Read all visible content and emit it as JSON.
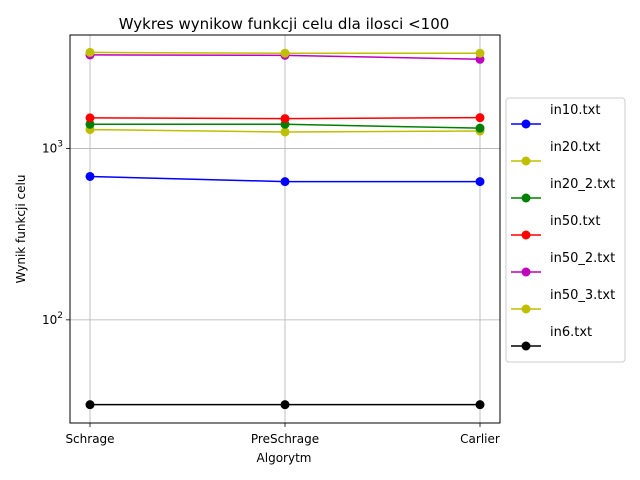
{
  "chart_data": {
    "type": "line",
    "title": "Wykres wynikow funkcji celu dla ilosci <100",
    "xlabel": "Algorytm",
    "ylabel": "Wynik funkcji celu",
    "yscale": "log",
    "ylim": [
      25,
      4600
    ],
    "y_ticks": [
      {
        "value": 100,
        "base": "10",
        "exp": "2"
      },
      {
        "value": 1000,
        "base": "10",
        "exp": "3"
      }
    ],
    "grid": true,
    "legend_position": "outside-right",
    "categories": [
      "Schrage",
      "PreSchrage",
      "Carlier"
    ],
    "series": [
      {
        "name": "in10.txt",
        "color": "#0000ff",
        "values": [
          687,
          641,
          641
        ]
      },
      {
        "name": "in20.txt",
        "color": "#bfbf00",
        "values": [
          1290,
          1250,
          1265
        ]
      },
      {
        "name": "in20_2.txt",
        "color": "#008000",
        "values": [
          1385,
          1385,
          1315
        ]
      },
      {
        "name": "in50.txt",
        "color": "#ff0000",
        "values": [
          1510,
          1495,
          1515
        ]
      },
      {
        "name": "in50_2.txt",
        "color": "#bf00bf",
        "values": [
          3520,
          3500,
          3320
        ]
      },
      {
        "name": "in50_3.txt",
        "color": "#bfbf00",
        "values": [
          3640,
          3600,
          3600
        ]
      },
      {
        "name": "in6.txt",
        "color": "#000000",
        "values": [
          32,
          32,
          32
        ]
      }
    ]
  }
}
